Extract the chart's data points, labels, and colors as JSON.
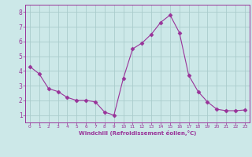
{
  "x": [
    0,
    1,
    2,
    3,
    4,
    5,
    6,
    7,
    8,
    9,
    10,
    11,
    12,
    13,
    14,
    15,
    16,
    17,
    18,
    19,
    20,
    21,
    22,
    23
  ],
  "y": [
    4.3,
    3.8,
    2.8,
    2.6,
    2.2,
    2.0,
    2.0,
    1.9,
    1.2,
    1.0,
    3.5,
    5.5,
    5.9,
    6.5,
    7.3,
    7.8,
    6.6,
    3.7,
    2.6,
    1.9,
    1.4,
    1.3,
    1.3,
    1.35
  ],
  "line_color": "#993399",
  "marker": "D",
  "marker_size": 2.5,
  "bg_color": "#cce8e8",
  "grid_color": "#aacccc",
  "xlabel": "Windchill (Refroidissement éolien,°C)",
  "xlabel_color": "#993399",
  "tick_color": "#993399",
  "ylim": [
    0.5,
    8.5
  ],
  "xlim": [
    -0.5,
    23.5
  ],
  "yticks": [
    1,
    2,
    3,
    4,
    5,
    6,
    7,
    8
  ],
  "xticks": [
    0,
    1,
    2,
    3,
    4,
    5,
    6,
    7,
    8,
    9,
    10,
    11,
    12,
    13,
    14,
    15,
    16,
    17,
    18,
    19,
    20,
    21,
    22,
    23
  ],
  "axis_spine_color": "#993399"
}
